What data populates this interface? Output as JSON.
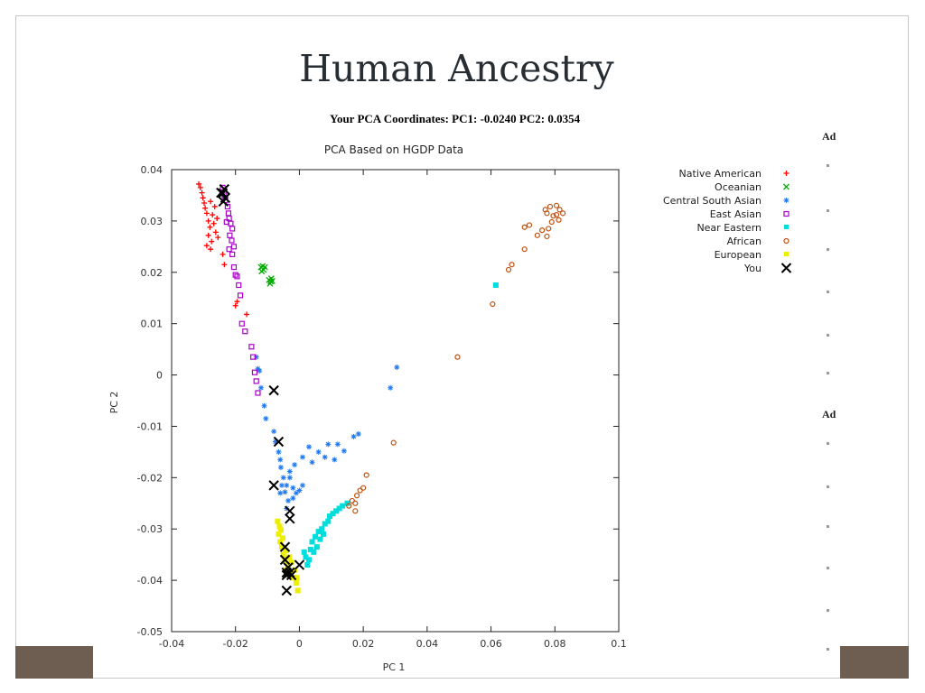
{
  "slide": {
    "title": "Human Ancestry",
    "coords_line": "Your PCA Coordinates: PC1: -0.0240 PC2: 0.0354",
    "cut_labels": [
      "Ad",
      "Ad"
    ]
  },
  "chart_data": {
    "type": "scatter",
    "title": "PCA Based on HGDP Data",
    "xlabel": "PC 1",
    "ylabel": "PC 2",
    "xlim": [
      -0.04,
      0.1
    ],
    "ylim": [
      -0.05,
      0.04
    ],
    "xticks": [
      -0.04,
      -0.02,
      0,
      0.02,
      0.04,
      0.06,
      0.08,
      0.1
    ],
    "xtick_labels": [
      "-0.04",
      "-0.02",
      "0",
      "0.02",
      "0.04",
      "0.06",
      "0.08",
      "0.1"
    ],
    "yticks": [
      -0.05,
      -0.04,
      -0.03,
      -0.02,
      -0.01,
      0,
      0.01,
      0.02,
      0.03,
      0.04
    ],
    "ytick_labels": [
      "-0.05",
      "-0.04",
      "-0.03",
      "-0.02",
      "-0.01",
      "0",
      "0.01",
      "0.02",
      "0.03",
      "0.04"
    ],
    "grid": false,
    "legend_position": "right",
    "series": [
      {
        "name": "Native American",
        "color": "#ff0000",
        "marker": "plus",
        "points": [
          [
            -0.0315,
            0.0372
          ],
          [
            -0.031,
            0.0365
          ],
          [
            -0.0305,
            0.0355
          ],
          [
            -0.0302,
            0.0345
          ],
          [
            -0.0298,
            0.0335
          ],
          [
            -0.0295,
            0.0325
          ],
          [
            -0.029,
            0.0315
          ],
          [
            -0.0285,
            0.03
          ],
          [
            -0.028,
            0.0288
          ],
          [
            -0.0285,
            0.0272
          ],
          [
            -0.0275,
            0.026
          ],
          [
            -0.029,
            0.0252
          ],
          [
            -0.0278,
            0.0245
          ],
          [
            -0.0272,
            0.0312
          ],
          [
            -0.0268,
            0.0295
          ],
          [
            -0.0262,
            0.0278
          ],
          [
            -0.0255,
            0.0268
          ],
          [
            -0.0258,
            0.0305
          ],
          [
            -0.0265,
            0.0328
          ],
          [
            -0.0278,
            0.0338
          ],
          [
            -0.024,
            0.0235
          ],
          [
            -0.0235,
            0.0215
          ],
          [
            -0.02,
            0.0135
          ],
          [
            -0.0195,
            0.0143
          ],
          [
            -0.0165,
            0.0118
          ]
        ]
      },
      {
        "name": "Oceanian",
        "color": "#00aa00",
        "marker": "x",
        "points": [
          [
            -0.012,
            0.021
          ],
          [
            -0.0115,
            0.0212
          ],
          [
            -0.0112,
            0.0205
          ],
          [
            -0.0118,
            0.0202
          ],
          [
            -0.0108,
            0.021
          ],
          [
            -0.0095,
            0.0185
          ],
          [
            -0.009,
            0.0182
          ],
          [
            -0.0088,
            0.0188
          ],
          [
            -0.0092,
            0.0178
          ],
          [
            -0.0085,
            0.0183
          ]
        ]
      },
      {
        "name": "Central South Asian",
        "color": "#1e78f0",
        "marker": "asterisk",
        "points": [
          [
            -0.0135,
            0.0035
          ],
          [
            -0.013,
            0.0012
          ],
          [
            -0.0125,
            0.0008
          ],
          [
            -0.012,
            -0.0025
          ],
          [
            -0.011,
            -0.006
          ],
          [
            -0.0105,
            -0.0085
          ],
          [
            -0.008,
            -0.011
          ],
          [
            -0.0075,
            -0.013
          ],
          [
            -0.0065,
            -0.015
          ],
          [
            -0.006,
            -0.0165
          ],
          [
            -0.0058,
            -0.018
          ],
          [
            -0.005,
            -0.02
          ],
          [
            -0.0055,
            -0.0215
          ],
          [
            -0.006,
            -0.023
          ],
          [
            -0.0045,
            -0.0228
          ],
          [
            -0.004,
            -0.0215
          ],
          [
            -0.003,
            -0.02
          ],
          [
            -0.002,
            -0.022
          ],
          [
            -0.001,
            -0.023
          ],
          [
            0.0,
            -0.0225
          ],
          [
            0.001,
            -0.0215
          ],
          [
            -0.0035,
            -0.0245
          ],
          [
            -0.002,
            -0.024
          ],
          [
            -0.003,
            -0.0188
          ],
          [
            -0.0015,
            -0.0175
          ],
          [
            0.001,
            -0.016
          ],
          [
            0.003,
            -0.014
          ],
          [
            0.004,
            -0.017
          ],
          [
            0.006,
            -0.015
          ],
          [
            0.008,
            -0.016
          ],
          [
            0.009,
            -0.0135
          ],
          [
            0.011,
            -0.0165
          ],
          [
            0.012,
            -0.0135
          ],
          [
            0.014,
            -0.0148
          ],
          [
            0.017,
            -0.012
          ],
          [
            0.0185,
            -0.0115
          ],
          [
            0.0285,
            -0.0025
          ],
          [
            0.0305,
            0.0015
          ],
          [
            -0.004,
            -0.026
          ]
        ]
      },
      {
        "name": "East Asian",
        "color": "#aa00cc",
        "marker": "square",
        "points": [
          [
            -0.024,
            0.0365
          ],
          [
            -0.0235,
            0.035
          ],
          [
            -0.0232,
            0.034
          ],
          [
            -0.0225,
            0.0328
          ],
          [
            -0.0222,
            0.0315
          ],
          [
            -0.022,
            0.0305
          ],
          [
            -0.0215,
            0.0295
          ],
          [
            -0.021,
            0.0285
          ],
          [
            -0.0228,
            0.0298
          ],
          [
            -0.0218,
            0.0272
          ],
          [
            -0.0212,
            0.0262
          ],
          [
            -0.0205,
            0.025
          ],
          [
            -0.022,
            0.0245
          ],
          [
            -0.021,
            0.0235
          ],
          [
            -0.0205,
            0.021
          ],
          [
            -0.019,
            0.0175
          ],
          [
            -0.0185,
            0.0155
          ],
          [
            -0.018,
            0.01
          ],
          [
            -0.017,
            0.0085
          ],
          [
            -0.015,
            0.0055
          ],
          [
            -0.0145,
            0.0035
          ],
          [
            -0.014,
            0.0005
          ],
          [
            -0.0135,
            -0.0012
          ],
          [
            -0.013,
            -0.0035
          ],
          [
            -0.02,
            0.0195
          ],
          [
            -0.0195,
            0.0192
          ]
        ]
      },
      {
        "name": "Near Eastern",
        "color": "#00dddd",
        "marker": "square",
        "points": [
          [
            0.0015,
            -0.0345
          ],
          [
            0.002,
            -0.0355
          ],
          [
            0.003,
            -0.036
          ],
          [
            0.0035,
            -0.034
          ],
          [
            0.004,
            -0.0325
          ],
          [
            0.005,
            -0.0315
          ],
          [
            0.006,
            -0.0305
          ],
          [
            0.007,
            -0.03
          ],
          [
            0.008,
            -0.029
          ],
          [
            0.009,
            -0.0285
          ],
          [
            0.0095,
            -0.0275
          ],
          [
            0.0105,
            -0.027
          ],
          [
            0.0115,
            -0.0265
          ],
          [
            0.0125,
            -0.026
          ],
          [
            0.0135,
            -0.0255
          ],
          [
            0.015,
            -0.025
          ],
          [
            0.0045,
            -0.0345
          ],
          [
            0.0055,
            -0.0335
          ],
          [
            0.0065,
            -0.032
          ],
          [
            0.0075,
            -0.031
          ],
          [
            0.0025,
            -0.037
          ],
          [
            0.0615,
            0.0175
          ]
        ]
      },
      {
        "name": "African",
        "color": "#c05010",
        "marker": "circle",
        "points": [
          [
            0.0155,
            -0.0255
          ],
          [
            0.0165,
            -0.0245
          ],
          [
            0.0175,
            -0.025
          ],
          [
            0.018,
            -0.0235
          ],
          [
            0.019,
            -0.0225
          ],
          [
            0.02,
            -0.022
          ],
          [
            0.0175,
            -0.0265
          ],
          [
            0.021,
            -0.0195
          ],
          [
            0.0295,
            -0.0132
          ],
          [
            0.0495,
            0.0035
          ],
          [
            0.0605,
            0.0138
          ],
          [
            0.0655,
            0.0205
          ],
          [
            0.0665,
            0.0215
          ],
          [
            0.0705,
            0.0245
          ],
          [
            0.0705,
            0.0288
          ],
          [
            0.072,
            0.0292
          ],
          [
            0.0745,
            0.0272
          ],
          [
            0.076,
            0.0282
          ],
          [
            0.0775,
            0.027
          ],
          [
            0.078,
            0.0285
          ],
          [
            0.079,
            0.0298
          ],
          [
            0.0805,
            0.0312
          ],
          [
            0.0815,
            0.0322
          ],
          [
            0.0805,
            0.033
          ],
          [
            0.0785,
            0.0328
          ],
          [
            0.077,
            0.0322
          ],
          [
            0.0812,
            0.0302
          ],
          [
            0.0795,
            0.031
          ],
          [
            0.0825,
            0.0315
          ],
          [
            0.0775,
            0.0315
          ]
        ]
      },
      {
        "name": "European",
        "color": "#eeee00",
        "marker": "circle",
        "points": [
          [
            -0.0068,
            -0.0285
          ],
          [
            -0.0062,
            -0.0295
          ],
          [
            -0.0065,
            -0.031
          ],
          [
            -0.006,
            -0.0325
          ],
          [
            -0.0055,
            -0.0335
          ],
          [
            -0.005,
            -0.035
          ],
          [
            -0.0045,
            -0.036
          ],
          [
            -0.0035,
            -0.037
          ],
          [
            -0.003,
            -0.0385
          ],
          [
            -0.002,
            -0.0395
          ],
          [
            -0.001,
            -0.0405
          ],
          [
            -0.0005,
            -0.042
          ],
          [
            -0.004,
            -0.038
          ],
          [
            -0.0025,
            -0.0365
          ],
          [
            -0.0015,
            -0.038
          ],
          [
            -0.0058,
            -0.0302
          ],
          [
            -0.0052,
            -0.0318
          ],
          [
            -0.0042,
            -0.0342
          ],
          [
            -0.0032,
            -0.0355
          ],
          [
            -0.0008,
            -0.0395
          ]
        ]
      },
      {
        "name": "You",
        "color": "#000000",
        "marker": "bigx",
        "points": [
          [
            -0.024,
            0.0354
          ],
          [
            -0.0235,
            0.0362
          ],
          [
            -0.0232,
            0.0345
          ],
          [
            -0.0245,
            0.0355
          ],
          [
            -0.0238,
            0.0338
          ],
          [
            -0.008,
            -0.003
          ],
          [
            -0.0065,
            -0.013
          ],
          [
            -0.008,
            -0.0215
          ],
          [
            -0.003,
            -0.0265
          ],
          [
            -0.003,
            -0.028
          ],
          [
            -0.0045,
            -0.0335
          ],
          [
            -0.0045,
            -0.036
          ],
          [
            -0.0035,
            -0.0375
          ],
          [
            -0.003,
            -0.0385
          ],
          [
            -0.004,
            -0.039
          ],
          [
            -0.0025,
            -0.039
          ],
          [
            -0.004,
            -0.0385
          ],
          [
            0.0,
            -0.037
          ],
          [
            -0.004,
            -0.042
          ]
        ]
      }
    ]
  }
}
